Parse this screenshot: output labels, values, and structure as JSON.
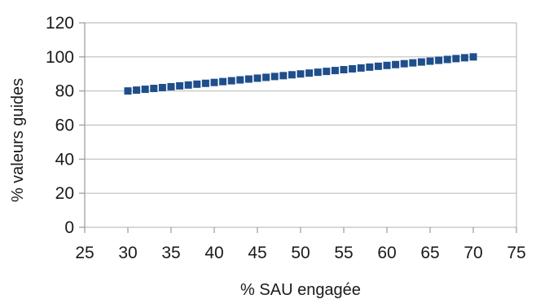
{
  "chart_data": {
    "type": "scatter",
    "title": "",
    "xlabel": "% SAU engagée",
    "ylabel": "% valeurs guides",
    "xlim": [
      25,
      75
    ],
    "ylim": [
      0,
      120
    ],
    "xticks": [
      25,
      30,
      35,
      40,
      45,
      50,
      55,
      60,
      65,
      70,
      75
    ],
    "yticks": [
      0,
      20,
      40,
      60,
      80,
      100,
      120
    ],
    "grid": "horizontal",
    "legend": "none",
    "series": [
      {
        "color": "#1f4e8c",
        "marker": "square",
        "x": [
          30,
          31,
          32,
          33,
          34,
          35,
          36,
          37,
          38,
          39,
          40,
          41,
          42,
          43,
          44,
          45,
          46,
          47,
          48,
          49,
          50,
          51,
          52,
          53,
          54,
          55,
          56,
          57,
          58,
          59,
          60,
          61,
          62,
          63,
          64,
          65,
          66,
          67,
          68,
          69,
          70
        ],
        "y": [
          80,
          80.5,
          81,
          81.5,
          82,
          82.5,
          83,
          83.5,
          84,
          84.5,
          85,
          85.5,
          86,
          86.5,
          87,
          87.5,
          88,
          88.5,
          89,
          89.5,
          90,
          90.5,
          91,
          91.5,
          92,
          92.5,
          93,
          93.5,
          94,
          94.5,
          95,
          95.5,
          96,
          96.5,
          97,
          97.5,
          98,
          98.5,
          99,
          99.5,
          100
        ]
      }
    ],
    "colors": {
      "grid": "#bfbfbf",
      "axis": "#999999",
      "text": "#1a1a1a"
    }
  }
}
